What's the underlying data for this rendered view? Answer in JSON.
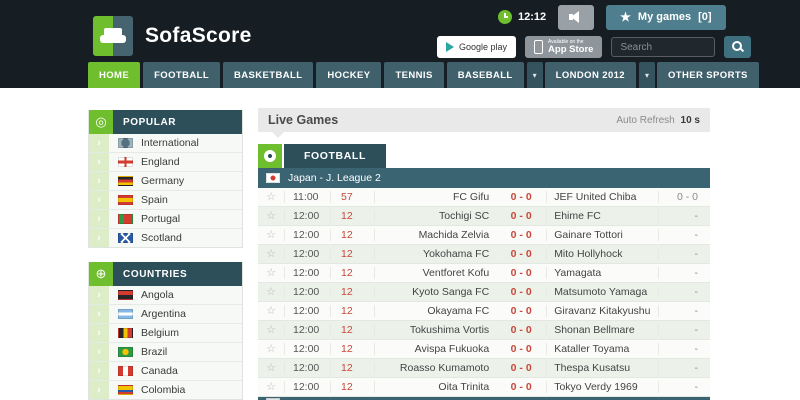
{
  "header": {
    "brand": "SofaScore",
    "clock": "12:12",
    "my_games_label": "My games",
    "my_games_count": "[0]",
    "google_play_label": "Google play",
    "app_store_small": "Available on the",
    "app_store_label": "App Store",
    "search_placeholder": "Search"
  },
  "nav": {
    "tabs": [
      {
        "label": "HOME",
        "active": true,
        "dropdown": false
      },
      {
        "label": "FOOTBALL",
        "active": false,
        "dropdown": false
      },
      {
        "label": "BASKETBALL",
        "active": false,
        "dropdown": false
      },
      {
        "label": "HOCKEY",
        "active": false,
        "dropdown": false
      },
      {
        "label": "TENNIS",
        "active": false,
        "dropdown": false
      },
      {
        "label": "BASEBALL",
        "active": false,
        "dropdown": false
      },
      {
        "label": "LONDON 2012",
        "active": false,
        "dropdown": true
      },
      {
        "label": "OTHER SPORTS",
        "active": false,
        "dropdown": true
      }
    ]
  },
  "sidebar": {
    "sections": [
      {
        "title": "POPULAR",
        "icon": "bullseye-icon",
        "items": [
          {
            "label": "International",
            "flag": "international"
          },
          {
            "label": "England",
            "flag": "england"
          },
          {
            "label": "Germany",
            "flag": "germany"
          },
          {
            "label": "Spain",
            "flag": "spain"
          },
          {
            "label": "Portugal",
            "flag": "portugal"
          },
          {
            "label": "Scotland",
            "flag": "scotland"
          }
        ]
      },
      {
        "title": "COUNTRIES",
        "icon": "globe-icon",
        "items": [
          {
            "label": "Angola",
            "flag": "angola"
          },
          {
            "label": "Argentina",
            "flag": "argentina"
          },
          {
            "label": "Belgium",
            "flag": "belgium"
          },
          {
            "label": "Brazil",
            "flag": "brazil"
          },
          {
            "label": "Canada",
            "flag": "canada"
          },
          {
            "label": "Colombia",
            "flag": "colombia"
          }
        ]
      }
    ]
  },
  "main": {
    "live_games_title": "Live Games",
    "auto_refresh_label": "Auto Refresh",
    "auto_refresh_value": "10 s",
    "sport_tab": "FOOTBALL",
    "league": "Japan - J. League 2",
    "league_flag": "japan",
    "matches": [
      {
        "time": "11:00",
        "minute": "57",
        "home": "FC Gifu",
        "score": "0 - 0",
        "away": "JEF United Chiba",
        "ht": "0 - 0"
      },
      {
        "time": "12:00",
        "minute": "12",
        "home": "Tochigi SC",
        "score": "0 - 0",
        "away": "Ehime FC",
        "ht": "-"
      },
      {
        "time": "12:00",
        "minute": "12",
        "home": "Machida Zelvia",
        "score": "0 - 0",
        "away": "Gainare Tottori",
        "ht": "-"
      },
      {
        "time": "12:00",
        "minute": "12",
        "home": "Yokohama FC",
        "score": "0 - 0",
        "away": "Mito Hollyhock",
        "ht": "-"
      },
      {
        "time": "12:00",
        "minute": "12",
        "home": "Ventforet Kofu",
        "score": "0 - 0",
        "away": "Yamagata",
        "ht": "-"
      },
      {
        "time": "12:00",
        "minute": "12",
        "home": "Kyoto Sanga FC",
        "score": "0 - 0",
        "away": "Matsumoto Yamaga",
        "ht": "-"
      },
      {
        "time": "12:00",
        "minute": "12",
        "home": "Okayama FC",
        "score": "0 - 0",
        "away": "Giravanz Kitakyushu",
        "ht": "-"
      },
      {
        "time": "12:00",
        "minute": "12",
        "home": "Tokushima Vortis",
        "score": "0 - 0",
        "away": "Shonan Bellmare",
        "ht": "-"
      },
      {
        "time": "12:00",
        "minute": "12",
        "home": "Avispa Fukuoka",
        "score": "0 - 0",
        "away": "Kataller Toyama",
        "ht": "-"
      },
      {
        "time": "12:00",
        "minute": "12",
        "home": "Roasso Kumamoto",
        "score": "0 - 0",
        "away": "Thespa Kusatsu",
        "ht": "-"
      },
      {
        "time": "12:00",
        "minute": "12",
        "home": "Oita Trinita",
        "score": "0 - 0",
        "away": "Tokyo Verdy 1969",
        "ht": "-"
      }
    ]
  },
  "colors": {
    "header_bg": "#161d23",
    "accent_green": "#6fbe2e",
    "teal_dark": "#2d4f5a",
    "teal_league": "#3a6472",
    "teal_button": "#4f7f8e",
    "live_red": "#c9473a",
    "row_alt": "#ecf1ea"
  }
}
